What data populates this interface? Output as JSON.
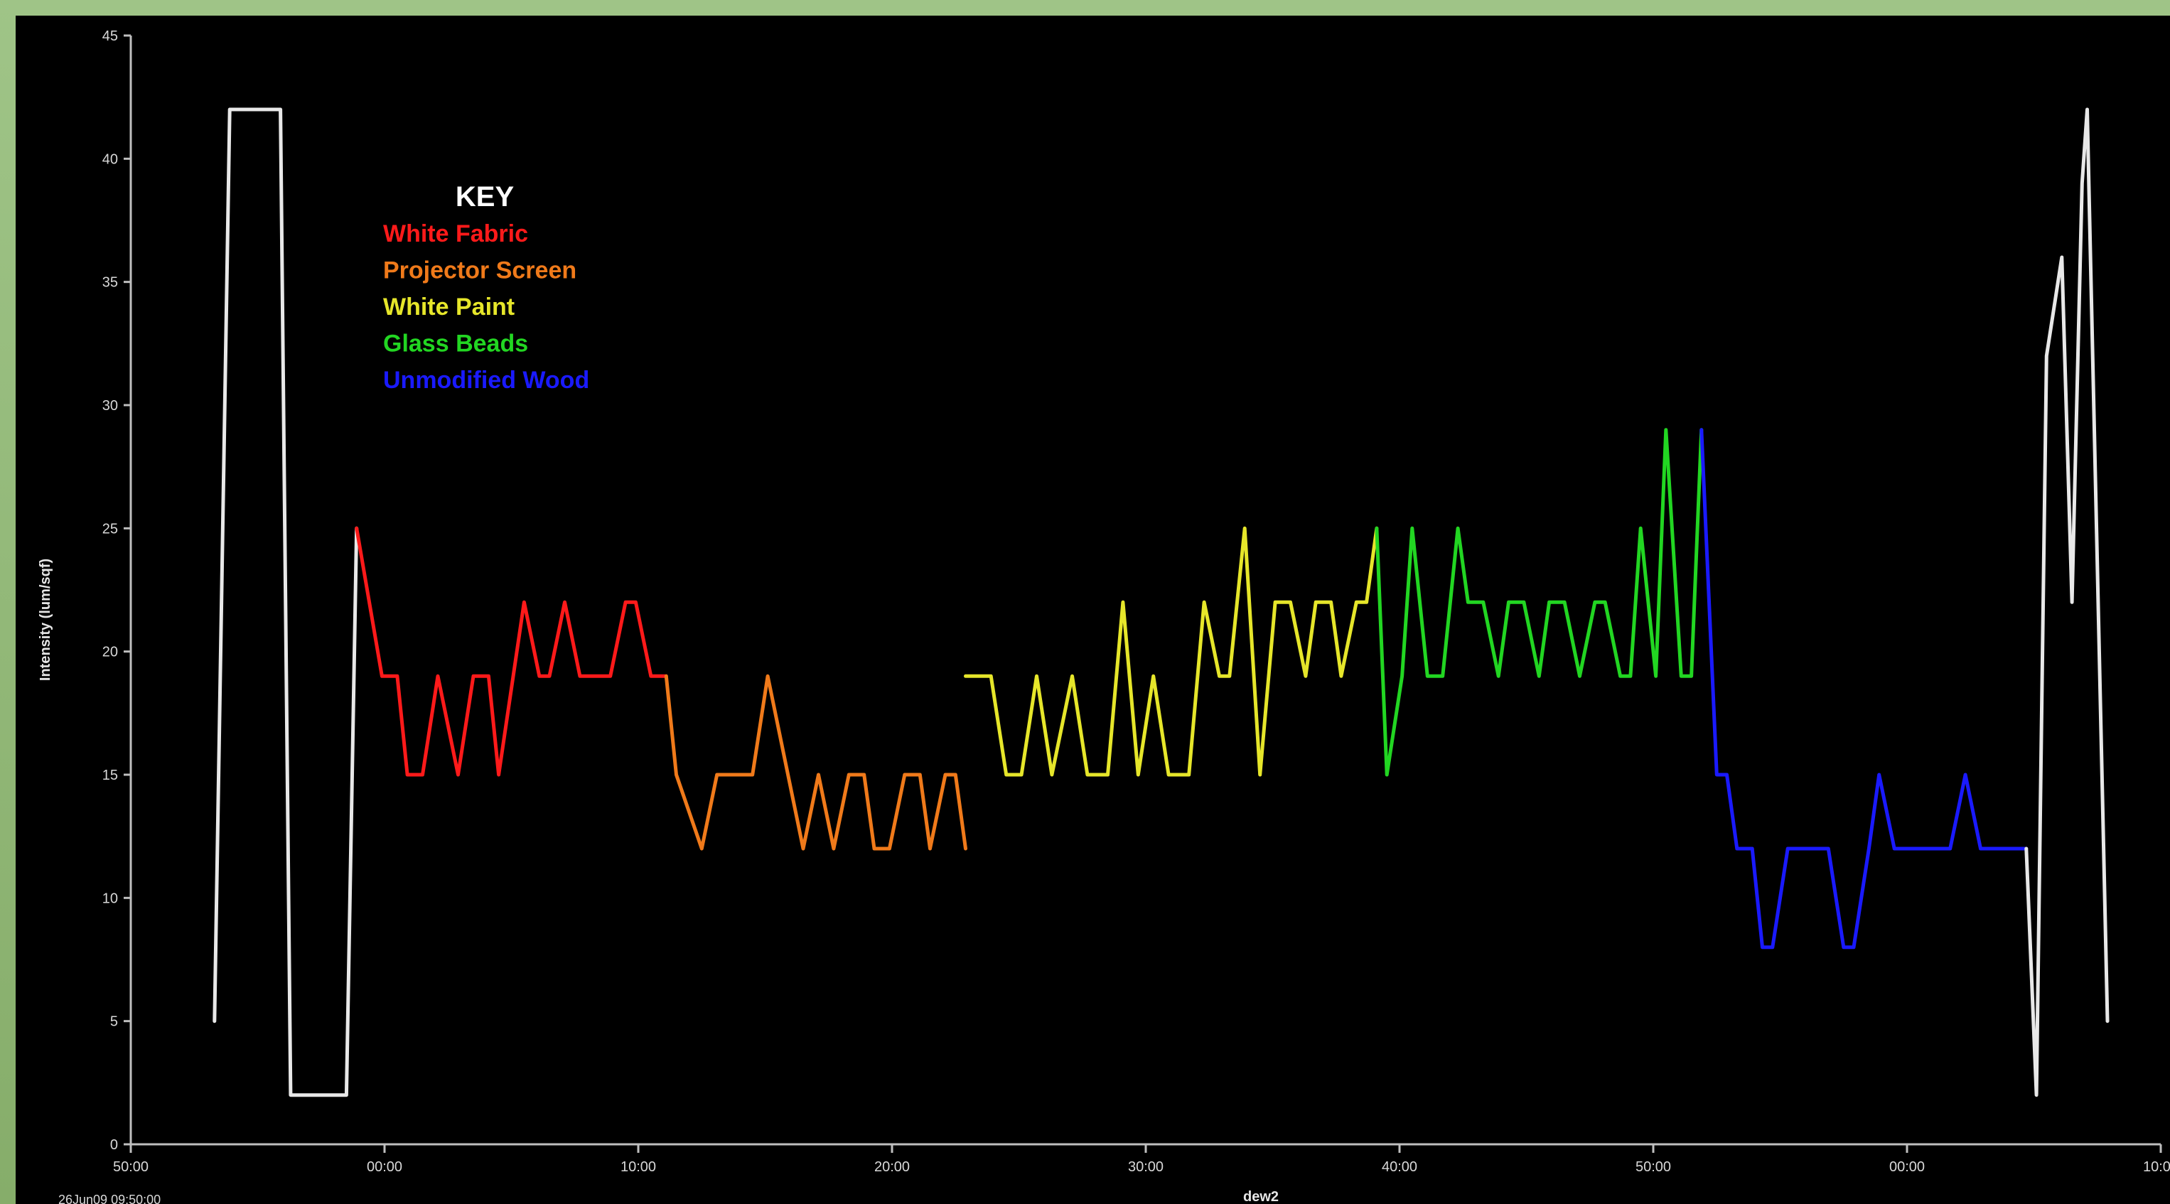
{
  "chart_data": {
    "type": "line",
    "title": "",
    "xlabel": "dew2",
    "ylabel": "Intensity (lum/sqf)",
    "ylim": [
      0,
      45
    ],
    "yticks": [
      0,
      5,
      10,
      15,
      20,
      25,
      30,
      35,
      40,
      45
    ],
    "xlim": [
      -10,
      70
    ],
    "xticks": [
      {
        "x": -10,
        "label": "50:00"
      },
      {
        "x": 0,
        "label": "00:00"
      },
      {
        "x": 10,
        "label": "10:00"
      },
      {
        "x": 20,
        "label": "20:00"
      },
      {
        "x": 30,
        "label": "30:00"
      },
      {
        "x": 40,
        "label": "40:00"
      },
      {
        "x": 50,
        "label": "50:00"
      },
      {
        "x": 60,
        "label": "00:00"
      },
      {
        "x": 70,
        "label": "10:00"
      }
    ],
    "x_origin_label": "26Jun09 09:50:00",
    "x_unit": "minutes",
    "grid": false,
    "legend": {
      "title": "KEY",
      "placement": "top-left",
      "entries": [
        {
          "label": "White Fabric",
          "color": "#ff1a1a"
        },
        {
          "label": "Projector Screen",
          "color": "#f07a1a"
        },
        {
          "label": "White Paint",
          "color": "#e6e62a"
        },
        {
          "label": "Glass Beads",
          "color": "#22d622"
        },
        {
          "label": "Unmodified Wood",
          "color": "#1a1aff"
        }
      ]
    },
    "series": [
      {
        "color": "#e8e8e8",
        "x": [
          -6.7,
          -6.1,
          -5.9,
          -4.1,
          -3.7,
          -3.3,
          -1.5,
          -1.1
        ],
        "y": [
          5,
          42,
          42,
          42,
          2,
          2,
          2,
          25
        ]
      },
      {
        "name": "White Fabric",
        "color": "#ff1a1a",
        "x": [
          -1.1,
          -0.1,
          0.5,
          0.9,
          1.5,
          2.1,
          2.9,
          3.5,
          4.1,
          4.5,
          5.5,
          6.1,
          6.5,
          7.1,
          7.7,
          8.3,
          8.9,
          9.5,
          9.9,
          10.5,
          11.1
        ],
        "y": [
          25,
          19,
          19,
          15,
          15,
          19,
          15,
          19,
          19,
          15,
          22,
          19,
          19,
          22,
          19,
          19,
          19,
          22,
          22,
          19,
          19
        ]
      },
      {
        "name": "Projector Screen",
        "color": "#f07a1a",
        "x": [
          11.1,
          11.5,
          12.5,
          13.1,
          14.1,
          14.5,
          15.1,
          15.9,
          16.5,
          17.1,
          17.7,
          18.3,
          18.9,
          19.3,
          19.9,
          20.5,
          21.1,
          21.5,
          22.1,
          22.5,
          22.9
        ],
        "y": [
          19,
          15,
          12,
          15,
          15,
          15,
          19,
          15,
          12,
          15,
          12,
          15,
          15,
          12,
          12,
          15,
          15,
          12,
          15,
          15,
          12
        ]
      },
      {
        "name": "White Paint",
        "color": "#e6e62a",
        "x": [
          22.9,
          23.3,
          23.9,
          24.5,
          25.1,
          25.7,
          26.3,
          27.1,
          27.7,
          28.5,
          29.1,
          29.7,
          30.3,
          30.9,
          31.3,
          31.7,
          32.3,
          32.9,
          33.3,
          33.9,
          34.5,
          35.1,
          35.7,
          36.3,
          36.7,
          37.3,
          37.7,
          38.3,
          38.7,
          39.1
        ],
        "y": [
          19,
          19,
          19,
          15,
          15,
          19,
          15,
          19,
          15,
          15,
          22,
          15,
          19,
          15,
          15,
          15,
          22,
          19,
          19,
          25,
          15,
          22,
          22,
          19,
          22,
          22,
          19,
          22,
          22,
          25
        ]
      },
      {
        "name": "Glass Beads",
        "color": "#22d622",
        "x": [
          39.1,
          39.5,
          40.1,
          40.5,
          41.1,
          41.7,
          42.3,
          42.7,
          43.3,
          43.9,
          44.3,
          44.9,
          45.5,
          45.9,
          46.5,
          47.1,
          47.7,
          48.1,
          48.7,
          49.1,
          49.5,
          50.1,
          50.5,
          51.1,
          51.5,
          51.9
        ],
        "y": [
          25,
          15,
          19,
          25,
          19,
          19,
          25,
          22,
          22,
          19,
          22,
          22,
          19,
          22,
          22,
          19,
          22,
          22,
          19,
          19,
          25,
          19,
          29,
          19,
          19,
          29
        ]
      },
      {
        "name": "Unmodified Wood",
        "color": "#1a1aff",
        "x": [
          51.9,
          52.5,
          52.9,
          53.3,
          53.9,
          54.3,
          54.7,
          55.3,
          56.1,
          56.9,
          57.5,
          57.9,
          58.5,
          58.9,
          59.5,
          60.1,
          60.5,
          61.1,
          61.7,
          62.3,
          62.9,
          63.5,
          64.1,
          64.7
        ],
        "y": [
          29,
          15,
          15,
          12,
          12,
          8,
          8,
          12,
          12,
          12,
          8,
          8,
          12,
          15,
          12,
          12,
          12,
          12,
          12,
          15,
          12,
          12,
          12,
          12
        ]
      },
      {
        "color": "#e8e8e8",
        "x": [
          64.7,
          65.1,
          65.5,
          66.1,
          66.5,
          66.9,
          67.1,
          67.9
        ],
        "y": [
          12,
          2,
          32,
          36,
          22,
          39,
          42,
          5
        ]
      }
    ]
  }
}
